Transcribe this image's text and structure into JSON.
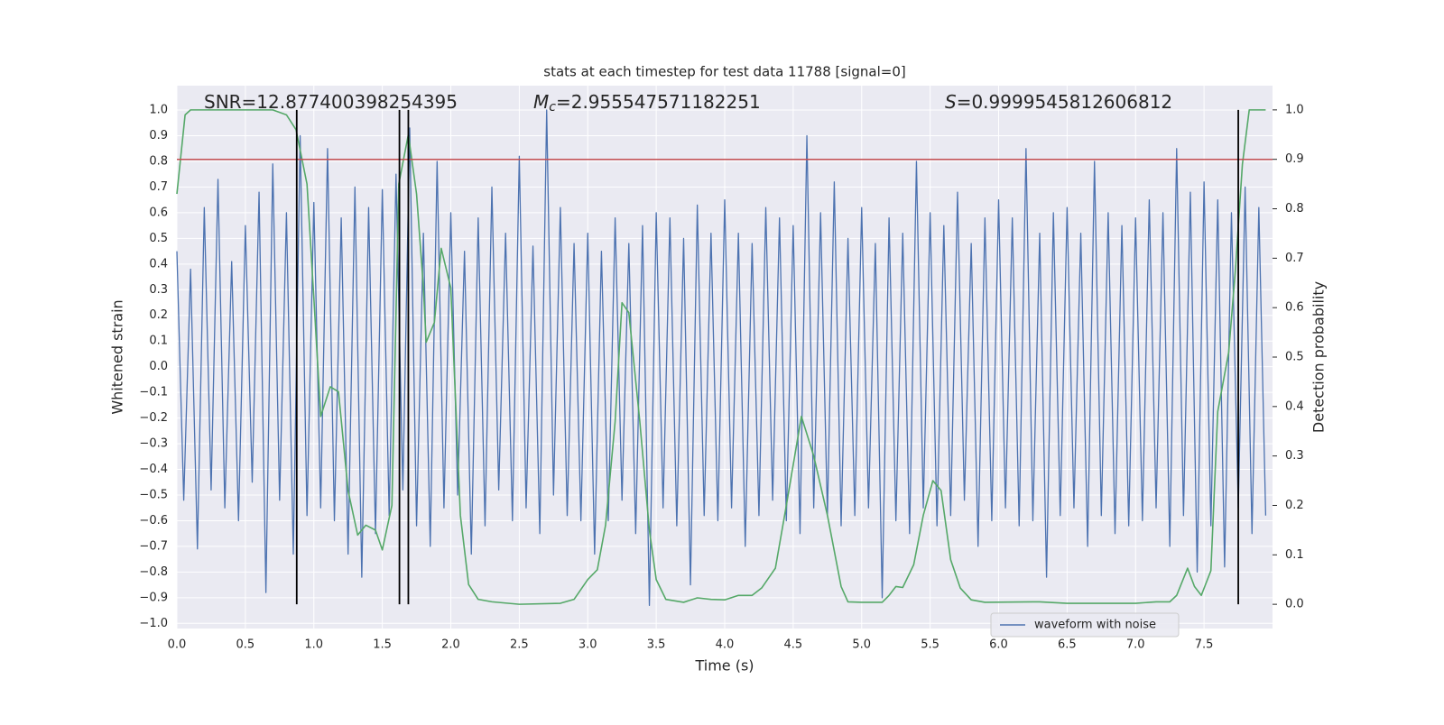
{
  "chart_data": {
    "type": "line",
    "title": "stats at each timestep for test data 11788 [signal=0]",
    "xlabel": "Time (s)",
    "ylabel": "Whitened strain",
    "y2label": "Detection probability",
    "xlim": [
      0,
      8
    ],
    "ylim": [
      -1.02,
      1.095
    ],
    "y2lim": [
      -0.049,
      1.049
    ],
    "xticks": [
      {
        "value": 0,
        "label": "0.0"
      },
      0.5,
      {
        "value": 1,
        "label": "1.0"
      },
      1.5,
      {
        "value": 2,
        "label": "2.0"
      },
      2.5,
      {
        "value": 3,
        "label": "3.0"
      },
      3.5,
      {
        "value": 4,
        "label": "4.0"
      },
      4.5,
      {
        "value": 5,
        "label": "5.0"
      },
      5.5,
      {
        "value": 6,
        "label": "6.0"
      },
      6.5,
      {
        "value": 7,
        "label": "7.0"
      },
      7.5
    ],
    "yticks": [
      {
        "value": -1,
        "label": "−1.0"
      },
      {
        "value": -0.9,
        "label": "−0.9"
      },
      {
        "value": -0.8,
        "label": "−0.8"
      },
      {
        "value": -0.7,
        "label": "−0.7"
      },
      {
        "value": -0.6,
        "label": "−0.6"
      },
      {
        "value": -0.5,
        "label": "−0.5"
      },
      {
        "value": -0.4,
        "label": "−0.4"
      },
      {
        "value": -0.3,
        "label": "−0.3"
      },
      {
        "value": -0.2,
        "label": "−0.2"
      },
      {
        "value": -0.1,
        "label": "−0.1"
      },
      {
        "value": 0,
        "label": "0.0"
      },
      0.1,
      0.2,
      0.3,
      0.4,
      0.5,
      0.6,
      0.7,
      0.8,
      0.9,
      {
        "value": 1,
        "label": "1.0"
      }
    ],
    "y2ticks": [
      {
        "value": 0,
        "label": "0.0"
      },
      0.1,
      0.2,
      0.3,
      0.4,
      0.5,
      0.6,
      0.7,
      0.8,
      0.9,
      {
        "value": 1,
        "label": "1.0"
      }
    ],
    "grid": true,
    "legend": "lower right",
    "annotations": [
      {
        "text": "SNR=12.877400398254395"
      },
      {
        "symbol": "M",
        "subscript": "c",
        "text": "=2.955547571182251"
      },
      {
        "symbol": "S",
        "text": "=0.9999545812606812"
      }
    ],
    "threshold": {
      "value": 0.9,
      "axis": "y2",
      "color": "#c44e52"
    },
    "detections": {
      "x": [
        0.875,
        1.625,
        1.69,
        7.75
      ],
      "span": [
        0,
        1
      ],
      "axis": "y2",
      "color": "#000000"
    },
    "series": [
      {
        "name": "waveform with noise",
        "color": "#4c72b0",
        "x": [
          0,
          0.05,
          0.1,
          0.15,
          0.2,
          0.25,
          0.3,
          0.35,
          0.4,
          0.45,
          0.5,
          0.55,
          0.6,
          0.65,
          0.7,
          0.75,
          0.8,
          0.85,
          0.9,
          0.95,
          1,
          1.05,
          1.1,
          1.15,
          1.2,
          1.25,
          1.3,
          1.35,
          1.4,
          1.45,
          1.5,
          1.55,
          1.6,
          1.65,
          1.7,
          1.75,
          1.8,
          1.85,
          1.9,
          1.95,
          2,
          2.05,
          2.1,
          2.15,
          2.2,
          2.25,
          2.3,
          2.35,
          2.4,
          2.45,
          2.5,
          2.55,
          2.6,
          2.65,
          2.7,
          2.75,
          2.8,
          2.85,
          2.9,
          2.95,
          3,
          3.05,
          3.1,
          3.15,
          3.2,
          3.25,
          3.3,
          3.35,
          3.4,
          3.45,
          3.5,
          3.55,
          3.6,
          3.65,
          3.7,
          3.75,
          3.8,
          3.85,
          3.9,
          3.95,
          4,
          4.05,
          4.1,
          4.15,
          4.2,
          4.25,
          4.3,
          4.35,
          4.4,
          4.45,
          4.5,
          4.55,
          4.6,
          4.65,
          4.7,
          4.75,
          4.8,
          4.85,
          4.9,
          4.95,
          5,
          5.05,
          5.1,
          5.15,
          5.2,
          5.25,
          5.3,
          5.35,
          5.4,
          5.45,
          5.5,
          5.55,
          5.6,
          5.65,
          5.7,
          5.75,
          5.8,
          5.85,
          5.9,
          5.95,
          6,
          6.05,
          6.1,
          6.15,
          6.2,
          6.25,
          6.3,
          6.35,
          6.4,
          6.45,
          6.5,
          6.55,
          6.6,
          6.65,
          6.7,
          6.75,
          6.8,
          6.85,
          6.9,
          6.95,
          7,
          7.05,
          7.1,
          7.15,
          7.2,
          7.25,
          7.3,
          7.35,
          7.4,
          7.45,
          7.5,
          7.55,
          7.6,
          7.65,
          7.7,
          7.75,
          7.8,
          7.85,
          7.9,
          7.95
        ],
        "values": [
          0.45,
          -0.52,
          0.38,
          -0.71,
          0.62,
          -0.48,
          0.73,
          -0.55,
          0.41,
          -0.6,
          0.55,
          -0.45,
          0.68,
          -0.88,
          0.79,
          -0.52,
          0.6,
          -0.73,
          0.9,
          -0.58,
          0.64,
          -0.55,
          0.85,
          -0.6,
          0.58,
          -0.73,
          0.7,
          -0.82,
          0.62,
          -0.65,
          0.69,
          -0.58,
          0.75,
          -0.48,
          0.93,
          -0.62,
          0.52,
          -0.7,
          0.8,
          -0.55,
          0.6,
          -0.5,
          0.45,
          -0.73,
          0.58,
          -0.62,
          0.7,
          -0.48,
          0.52,
          -0.6,
          0.82,
          -0.55,
          0.47,
          -0.65,
          1.0,
          -0.5,
          0.62,
          -0.58,
          0.48,
          -0.6,
          0.52,
          -0.73,
          0.45,
          -0.6,
          0.58,
          -0.52,
          0.48,
          -0.65,
          0.55,
          -0.93,
          0.6,
          -0.55,
          0.58,
          -0.62,
          0.5,
          -0.85,
          0.63,
          -0.58,
          0.52,
          -0.6,
          0.65,
          -0.55,
          0.52,
          -0.7,
          0.48,
          -0.58,
          0.62,
          -0.52,
          0.58,
          -0.6,
          0.55,
          -0.65,
          0.9,
          -0.55,
          0.6,
          -0.58,
          0.72,
          -0.62,
          0.5,
          -0.58,
          0.62,
          -0.55,
          0.48,
          -0.9,
          0.58,
          -0.6,
          0.52,
          -0.65,
          0.8,
          -0.55,
          0.6,
          -0.62,
          0.55,
          -0.58,
          0.68,
          -0.52,
          0.48,
          -0.7,
          0.58,
          -0.6,
          0.65,
          -0.55,
          0.58,
          -0.62,
          0.85,
          -0.6,
          0.52,
          -0.82,
          0.6,
          -0.58,
          0.62,
          -0.55,
          0.52,
          -0.7,
          0.8,
          -0.58,
          0.6,
          -0.65,
          0.55,
          -0.62,
          0.58,
          -0.6,
          0.65,
          -0.55,
          0.6,
          -0.7,
          0.85,
          -0.58,
          0.68,
          -0.8,
          0.72,
          -0.62,
          0.65,
          -0.78,
          0.6,
          -0.55,
          0.7,
          -0.65,
          0.62,
          -0.58
        ]
      },
      {
        "color": "#55a868",
        "axis": "y2",
        "x": [
          0,
          0.06,
          0.1,
          0.7,
          0.8,
          0.87,
          0.95,
          1,
          1.05,
          1.12,
          1.18,
          1.25,
          1.32,
          1.38,
          1.45,
          1.5,
          1.57,
          1.62,
          1.69,
          1.75,
          1.8,
          1.82,
          1.88,
          1.93,
          2,
          2.07,
          2.13,
          2.2,
          2.3,
          2.5,
          2.8,
          2.9,
          3,
          3.07,
          3.13,
          3.2,
          3.25,
          3.3,
          3.38,
          3.45,
          3.5,
          3.57,
          3.7,
          3.8,
          3.9,
          4,
          4.1,
          4.2,
          4.27,
          4.37,
          4.45,
          4.56,
          4.65,
          4.75,
          4.85,
          4.9,
          5,
          5.15,
          5.2,
          5.25,
          5.3,
          5.38,
          5.45,
          5.52,
          5.58,
          5.65,
          5.72,
          5.8,
          5.9,
          6.3,
          6.5,
          7,
          7.15,
          7.25,
          7.3,
          7.38,
          7.43,
          7.48,
          7.55,
          7.6,
          7.68,
          7.73,
          7.78,
          7.83,
          7.95
        ],
        "values": [
          0.83,
          0.99,
          1,
          1,
          0.99,
          0.96,
          0.85,
          0.62,
          0.38,
          0.44,
          0.43,
          0.23,
          0.14,
          0.16,
          0.15,
          0.11,
          0.2,
          0.85,
          0.95,
          0.83,
          0.64,
          0.53,
          0.57,
          0.72,
          0.64,
          0.18,
          0.04,
          0.01,
          0.005,
          0,
          0.002,
          0.01,
          0.05,
          0.07,
          0.16,
          0.37,
          0.61,
          0.59,
          0.37,
          0.15,
          0.05,
          0.01,
          0.004,
          0.013,
          0.01,
          0.009,
          0.018,
          0.018,
          0.033,
          0.073,
          0.2,
          0.38,
          0.3,
          0.18,
          0.036,
          0.005,
          0.004,
          0.004,
          0.018,
          0.036,
          0.034,
          0.08,
          0.18,
          0.25,
          0.23,
          0.09,
          0.033,
          0.009,
          0.004,
          0.005,
          0.002,
          0.002,
          0.005,
          0.005,
          0.018,
          0.073,
          0.036,
          0.018,
          0.068,
          0.39,
          0.51,
          0.68,
          0.89,
          1,
          1
        ]
      }
    ]
  }
}
